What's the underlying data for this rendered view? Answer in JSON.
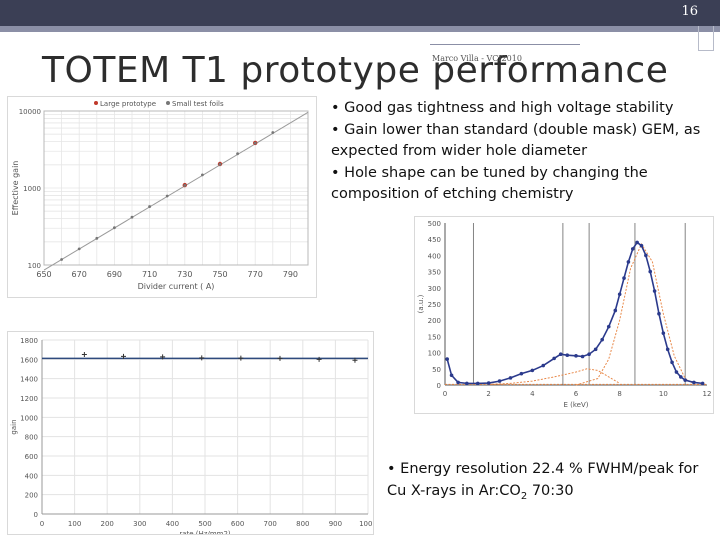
{
  "slide": {
    "number": "16",
    "title": "TOTEM T1 prototype performance",
    "footer": "Marco Villa - VCI2010"
  },
  "bullets_top": [
    "• Good gas tightness and high voltage stability",
    "• Gain lower than standard (double mask) GEM, as expected from wider hole diameter",
    "• Hole shape can be tuned by changing the composition of etching chemistry"
  ],
  "bullet_bottom": {
    "prefix": "• Energy resolution 22.4 % FWHM/peak for Cu X-rays in Ar:CO",
    "sub": "2",
    "suffix": " 70:30"
  },
  "chart_data": [
    {
      "type": "scatter",
      "legend": [
        "Large prototype",
        "Small test foils"
      ],
      "legend_colors": [
        "#c0392b",
        "#777777"
      ],
      "xlabel": "Divider current (  A)",
      "ylabel": "Effective gain",
      "x_ticks": [
        "650",
        "670",
        "690",
        "710",
        "730",
        "750",
        "770",
        "790"
      ],
      "y_ticks": [
        "100",
        "1000",
        "10000"
      ],
      "xlim": [
        650,
        800
      ],
      "ylim": [
        100,
        10000
      ],
      "yscale": "log",
      "grid": true,
      "series": [
        {
          "name": "Large prototype",
          "color": "#c0392b",
          "x": [
            730,
            750,
            770
          ],
          "y": [
            1090,
            2050,
            3850
          ]
        },
        {
          "name": "Small test foils",
          "color": "#777777",
          "x": [
            660,
            670,
            680,
            690,
            700,
            710,
            720,
            730,
            740,
            750,
            760,
            770,
            780
          ],
          "y": [
            118,
            162,
            222,
            305,
            418,
            574,
            788,
            1080,
            1480,
            2030,
            2790,
            3830,
            5250
          ]
        }
      ],
      "fit_line": {
        "x": [
          650,
          800
        ],
        "y": [
          86,
          9600
        ]
      }
    },
    {
      "type": "scatter",
      "xlabel": "rate (Hz/mm2)",
      "ylabel": "gain",
      "x_ticks": [
        "0",
        "100",
        "200",
        "300",
        "400",
        "500",
        "600",
        "700",
        "800",
        "900",
        "1000"
      ],
      "y_ticks": [
        "0",
        "200",
        "400",
        "600",
        "800",
        "1000",
        "1200",
        "1400",
        "1600",
        "1800"
      ],
      "xlim": [
        0,
        1000
      ],
      "ylim": [
        0,
        1800
      ],
      "grid": true,
      "series": [
        {
          "name": "",
          "color": "#333333",
          "x": [
            130,
            250,
            370,
            490,
            610,
            730,
            850,
            960
          ],
          "y": [
            1650,
            1630,
            1625,
            1615,
            1612,
            1610,
            1600,
            1590
          ]
        }
      ],
      "fit_line": {
        "x": [
          0,
          1000
        ],
        "y": [
          1610,
          1610
        ],
        "color": "#2e4a7d"
      }
    },
    {
      "type": "scatter",
      "xlabel": "E (keV)",
      "ylabel": "(a.u.)",
      "x_ticks": [
        "0",
        "2",
        "4",
        "6",
        "8",
        "10",
        "12"
      ],
      "y_ticks": [
        "0",
        "50",
        "100",
        "150",
        "200",
        "250",
        "300",
        "350",
        "400",
        "450",
        "500"
      ],
      "xlim": [
        0,
        12
      ],
      "ylim": [
        0,
        500
      ],
      "grid": false,
      "vlines": [
        1.3,
        5.4,
        6.6,
        8.7,
        11.0
      ],
      "series": [
        {
          "name": "",
          "color": "#2b3a8c",
          "x": [
            0.1,
            0.3,
            0.6,
            1.0,
            1.5,
            2.0,
            2.5,
            3.0,
            3.5,
            4.0,
            4.5,
            5.0,
            5.3,
            5.6,
            6.0,
            6.3,
            6.6,
            6.9,
            7.2,
            7.5,
            7.8,
            8.0,
            8.2,
            8.4,
            8.6,
            8.8,
            9.0,
            9.2,
            9.4,
            9.6,
            9.8,
            10.0,
            10.2,
            10.4,
            10.6,
            10.8,
            11.0,
            11.4,
            11.8
          ],
          "y": [
            80,
            30,
            8,
            5,
            5,
            6,
            12,
            22,
            35,
            45,
            60,
            82,
            95,
            92,
            90,
            88,
            95,
            110,
            140,
            180,
            230,
            280,
            330,
            380,
            420,
            440,
            430,
            400,
            350,
            290,
            220,
            160,
            110,
            70,
            40,
            25,
            15,
            8,
            5
          ]
        }
      ],
      "fit_curves": [
        {
          "color": "#e8894a",
          "x": [
            2,
            3,
            4,
            5,
            6,
            6.5,
            7,
            7.5,
            8
          ],
          "y": [
            2,
            5,
            12,
            25,
            40,
            50,
            45,
            25,
            5
          ]
        },
        {
          "color": "#e8894a",
          "x": [
            6,
            7,
            7.5,
            8,
            8.5,
            9,
            9.5,
            10,
            10.5,
            11,
            11.5
          ],
          "y": [
            0,
            20,
            80,
            200,
            360,
            435,
            380,
            220,
            90,
            20,
            0
          ]
        },
        {
          "color": "#e8894a",
          "x": [
            0,
            12
          ],
          "y": [
            2,
            2
          ]
        }
      ]
    }
  ]
}
